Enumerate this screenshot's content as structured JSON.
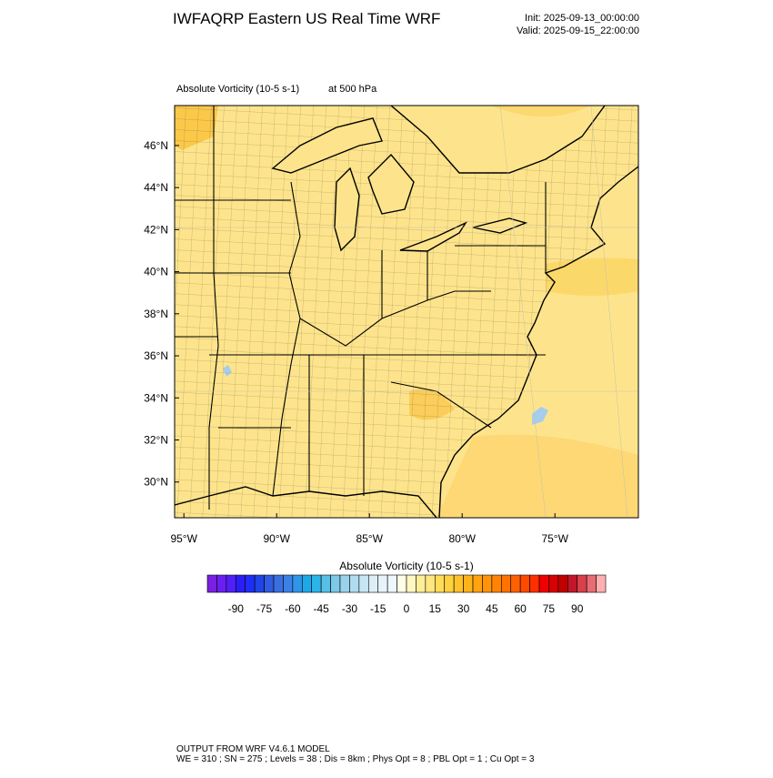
{
  "header": {
    "title": "IWFAQRP Eastern US Real Time WRF",
    "init": "Init: 2025-09-13_00:00:00",
    "valid": "Valid: 2025-09-15_22:00:00"
  },
  "map": {
    "field": "Absolute Vorticity   (10-5 s-1)",
    "level": "at   500 hPa",
    "lat_range": [
      28.3,
      47.9
    ],
    "lon_range": [
      -95.5,
      -70.5
    ],
    "lat_ticks": [
      {
        "value": 30,
        "label": "30°N"
      },
      {
        "value": 32,
        "label": "32°N"
      },
      {
        "value": 34,
        "label": "34°N"
      },
      {
        "value": 36,
        "label": "36°N"
      },
      {
        "value": 38,
        "label": "38°N"
      },
      {
        "value": 40,
        "label": "40°N"
      },
      {
        "value": 42,
        "label": "42°N"
      },
      {
        "value": 44,
        "label": "44°N"
      },
      {
        "value": 46,
        "label": "46°N"
      }
    ],
    "lon_ticks": [
      {
        "value": -95,
        "label": "95°W"
      },
      {
        "value": -90,
        "label": "90°W"
      },
      {
        "value": -85,
        "label": "85°W"
      },
      {
        "value": -80,
        "label": "80°W"
      },
      {
        "value": -75,
        "label": "75°W"
      }
    ]
  },
  "colorbar": {
    "title": "Absolute Vorticity  (10-5 s-1)",
    "clim": [
      -105,
      105
    ],
    "labels": [
      -90,
      -75,
      -60,
      -45,
      -30,
      -15,
      0,
      15,
      30,
      45,
      60,
      75,
      90
    ],
    "colors": [
      "#7b1fe0",
      "#6a1ff0",
      "#5020f5",
      "#2a1ef5",
      "#1f2ef5",
      "#1f44e8",
      "#2f5ce0",
      "#3b6fe0",
      "#3c80e8",
      "#2e95e8",
      "#1fa8e8",
      "#2cb4e8",
      "#58bfe8",
      "#7ec8e8",
      "#9ad2ec",
      "#b0dcf0",
      "#c6e6f4",
      "#dceff8",
      "#e6f3fa",
      "#eef7fb",
      "#fffde8",
      "#fff6c0",
      "#ffee99",
      "#ffe680",
      "#ffdc5a",
      "#ffd040",
      "#ffc22a",
      "#ffb31a",
      "#ffa310",
      "#ff9408",
      "#ff8404",
      "#ff7300",
      "#ff6000",
      "#ff4a00",
      "#ff3000",
      "#f00000",
      "#d80000",
      "#c00000",
      "#c0182a",
      "#d8404a",
      "#e86c74",
      "#ffb0b0"
    ]
  },
  "footer": {
    "line1": "OUTPUT FROM WRF V4.6.1 MODEL",
    "line2": "WE = 310 ; SN = 275 ; Levels = 38 ; Dis = 8km ; Phys Opt = 8 ; PBL Opt = 1 ; Cu Opt = 3"
  }
}
